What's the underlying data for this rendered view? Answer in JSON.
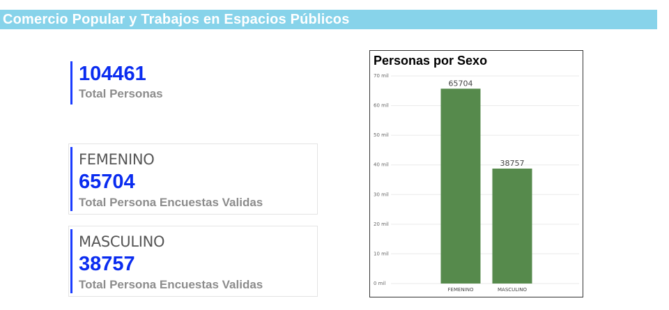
{
  "banner": {
    "title": "Comercio Popular y Trabajos en Espacios Públicos"
  },
  "kpi_total": {
    "value": "104461",
    "label": "Total Personas"
  },
  "cards": [
    {
      "category": "FEMENINO",
      "value": "65704",
      "label": "Total Persona Encuestas Validas"
    },
    {
      "category": "MASCULINO",
      "value": "38757",
      "label": "Total Persona Encuestas Validas"
    }
  ],
  "colors": {
    "banner": "#87d3ea",
    "accent": "#0a2cf0",
    "bar": "#568a4c"
  },
  "chart_data": {
    "type": "bar",
    "title": "Personas por Sexo",
    "categories": [
      "FEMENINO",
      "MASCULINO"
    ],
    "values": [
      65704,
      38757
    ],
    "data_labels": [
      "65704",
      "38757"
    ],
    "ylim": [
      0,
      70000
    ],
    "yticks": [
      0,
      10000,
      20000,
      30000,
      40000,
      50000,
      60000,
      70000
    ],
    "ytick_labels": [
      "0 mil",
      "10 mil",
      "20 mil",
      "30 mil",
      "40 mil",
      "50 mil",
      "60 mil",
      "70 mil"
    ],
    "xlabel": "",
    "ylabel": "",
    "grid": true,
    "bar_color": "#568a4c"
  }
}
